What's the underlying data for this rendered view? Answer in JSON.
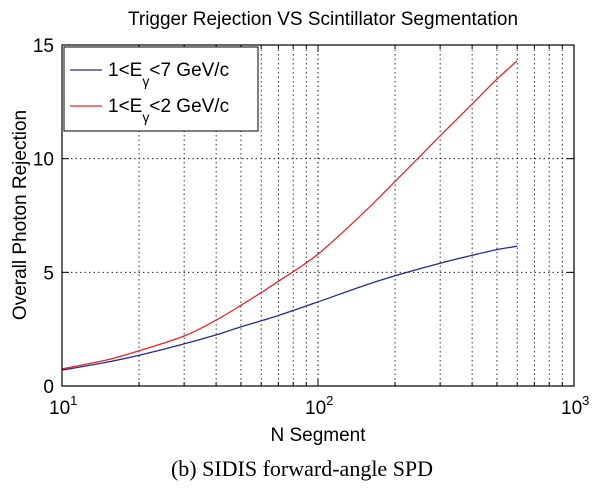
{
  "chart_data": {
    "type": "line",
    "title": "Trigger Rejection VS Scintillator Segmentation",
    "xlabel": "N Segment",
    "ylabel": "Overall Photon Rejection",
    "xscale": "log",
    "xlim": [
      10,
      1000
    ],
    "ylim": [
      0,
      15
    ],
    "x_ticks": [
      {
        "base": "10",
        "exp": "1"
      },
      {
        "base": "10",
        "exp": "2"
      },
      {
        "base": "10",
        "exp": "3"
      }
    ],
    "y_ticks": [
      "0",
      "5",
      "10",
      "15"
    ],
    "grid": true,
    "legend_position": "top-left",
    "series": [
      {
        "name_parts": {
          "pre": "1<E",
          "sub": "γ",
          "post": "<7 GeV/c"
        },
        "color": "#1f2f8f",
        "x": [
          10,
          15,
          20,
          30,
          40,
          50,
          70,
          100,
          150,
          200,
          300,
          400,
          500,
          600
        ],
        "y": [
          0.7,
          1.05,
          1.35,
          1.85,
          2.25,
          2.6,
          3.1,
          3.7,
          4.4,
          4.85,
          5.4,
          5.75,
          6.0,
          6.15
        ]
      },
      {
        "name_parts": {
          "pre": "1<E",
          "sub": "γ",
          "post": "<2 GeV/c"
        },
        "color": "#e8232a",
        "x": [
          10,
          15,
          20,
          30,
          40,
          50,
          70,
          100,
          150,
          200,
          300,
          400,
          500,
          600
        ],
        "y": [
          0.75,
          1.15,
          1.55,
          2.2,
          2.9,
          3.55,
          4.6,
          5.8,
          7.6,
          9.0,
          11.0,
          12.4,
          13.5,
          14.3
        ]
      }
    ]
  },
  "caption": "(b) SIDIS forward-angle SPD"
}
